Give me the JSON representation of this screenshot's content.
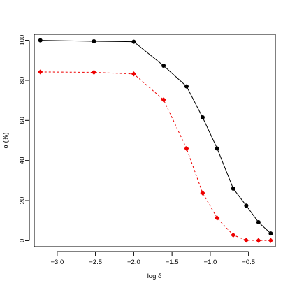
{
  "chart_data": {
    "type": "line",
    "title": "",
    "xlabel": "log δ",
    "ylabel": "α (%)",
    "xlim": [
      -3.3,
      -0.15
    ],
    "ylim": [
      -3,
      103
    ],
    "xticks": [
      -3.0,
      -2.5,
      -2.0,
      -1.5,
      -1.0,
      -0.5
    ],
    "xtick_labels": [
      "−3.0",
      "−2.5",
      "−2.0",
      "−1.5",
      "−1.0",
      "−0.5"
    ],
    "yticks": [
      0,
      20,
      40,
      60,
      80,
      100
    ],
    "ytick_labels": [
      "0",
      "20",
      "40",
      "60",
      "80",
      "100"
    ],
    "grid": false,
    "legend": "none",
    "series": [
      {
        "color": "#000000",
        "line_style": "solid",
        "marker": "circle",
        "x": [
          -3.22,
          -2.52,
          -2.0,
          -1.61,
          -1.31,
          -1.1,
          -0.91,
          -0.7,
          -0.53,
          -0.37,
          -0.21
        ],
        "y": [
          100,
          99.5,
          99.3,
          87.3,
          77,
          61.5,
          46,
          26,
          17.5,
          9.2,
          3.6
        ]
      },
      {
        "color": "#ee0000",
        "line_style": "dashed",
        "marker": "diamond",
        "x": [
          -3.22,
          -2.52,
          -2.0,
          -1.61,
          -1.31,
          -1.1,
          -0.91,
          -0.7,
          -0.53,
          -0.37,
          -0.21
        ],
        "y": [
          84.2,
          84,
          83.2,
          70.3,
          46,
          23.8,
          11.3,
          2.8,
          0.2,
          0.1,
          0.1
        ]
      }
    ]
  }
}
